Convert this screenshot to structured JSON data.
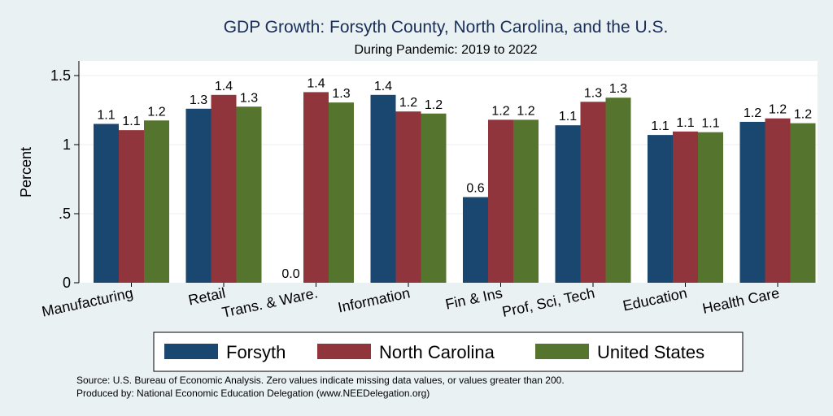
{
  "chart_data": {
    "type": "bar",
    "title": "GDP Growth: Forsyth County, North Carolina, and the U.S.",
    "subtitle": "During Pandemic: 2019 to 2022",
    "ylabel": "Percent",
    "xlabel": "",
    "ylim": [
      0,
      1.6
    ],
    "yticks": [
      {
        "value": 0,
        "label": "0"
      },
      {
        "value": 0.5,
        "label": ".5"
      },
      {
        "value": 1,
        "label": "1"
      },
      {
        "value": 1.5,
        "label": "1.5"
      }
    ],
    "grid": true,
    "legend_position": "bottom",
    "categories": [
      "Manufacturing",
      "Retail",
      "Trans. & Ware.",
      "Information",
      "Fin & Ins",
      "Prof, Sci, Tech",
      "Education",
      "Health Care"
    ],
    "series": [
      {
        "name": "Forsyth",
        "color": "#1a476f",
        "values": [
          1.15,
          1.26,
          0.0,
          1.36,
          0.62,
          1.14,
          1.07,
          1.165
        ],
        "labels": [
          "1.1",
          "1.3",
          "0.0",
          "1.4",
          "0.6",
          "1.1",
          "1.1",
          "1.2"
        ]
      },
      {
        "name": "North Carolina",
        "color": "#90353b",
        "values": [
          1.105,
          1.36,
          1.38,
          1.24,
          1.18,
          1.31,
          1.095,
          1.19
        ],
        "labels": [
          "1.1",
          "1.4",
          "1.4",
          "1.2",
          "1.2",
          "1.3",
          "1.1",
          "1.2"
        ]
      },
      {
        "name": "United States",
        "color": "#55752f",
        "values": [
          1.175,
          1.275,
          1.305,
          1.225,
          1.18,
          1.34,
          1.09,
          1.155
        ],
        "labels": [
          "1.2",
          "1.3",
          "1.3",
          "1.2",
          "1.2",
          "1.3",
          "1.1",
          "1.2"
        ]
      }
    ]
  },
  "footnotes": {
    "source": "Source: U.S. Bureau of Economic Analysis. Zero values indicate missing data values, or values greater than 200.",
    "produced_by": "Produced by: National Economic Education Delegation (www.NEEDelegation.org)"
  }
}
